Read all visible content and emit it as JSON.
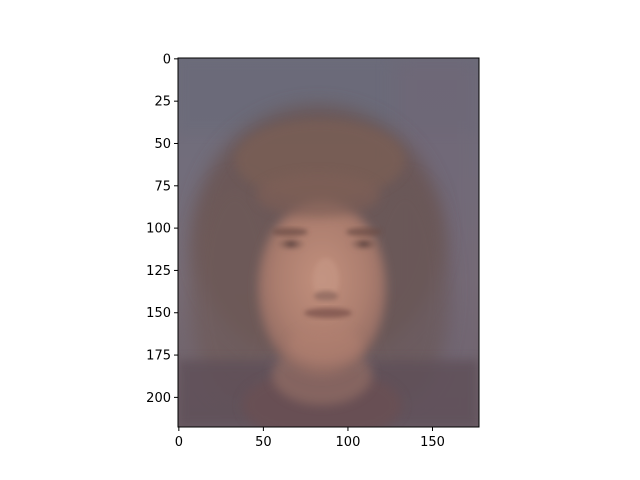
{
  "chart_data": {
    "type": "heatmap",
    "title": "",
    "xlabel": "",
    "ylabel": "",
    "xlim": [
      -0.5,
      177.5
    ],
    "ylim": [
      217.5,
      -0.5
    ],
    "x_ticks": [
      0,
      50,
      100,
      150
    ],
    "y_ticks": [
      0,
      25,
      50,
      75,
      100,
      125,
      150,
      175,
      200
    ],
    "image_description_colors": {
      "background_top": "#6f6e7b",
      "background_mid": "#7a6f78",
      "hair": "#6a5450",
      "skin": "#b88676",
      "skin_shadow": "#8e6a62",
      "shirt": "#5e4f56"
    },
    "grid": false,
    "legend": "none"
  }
}
